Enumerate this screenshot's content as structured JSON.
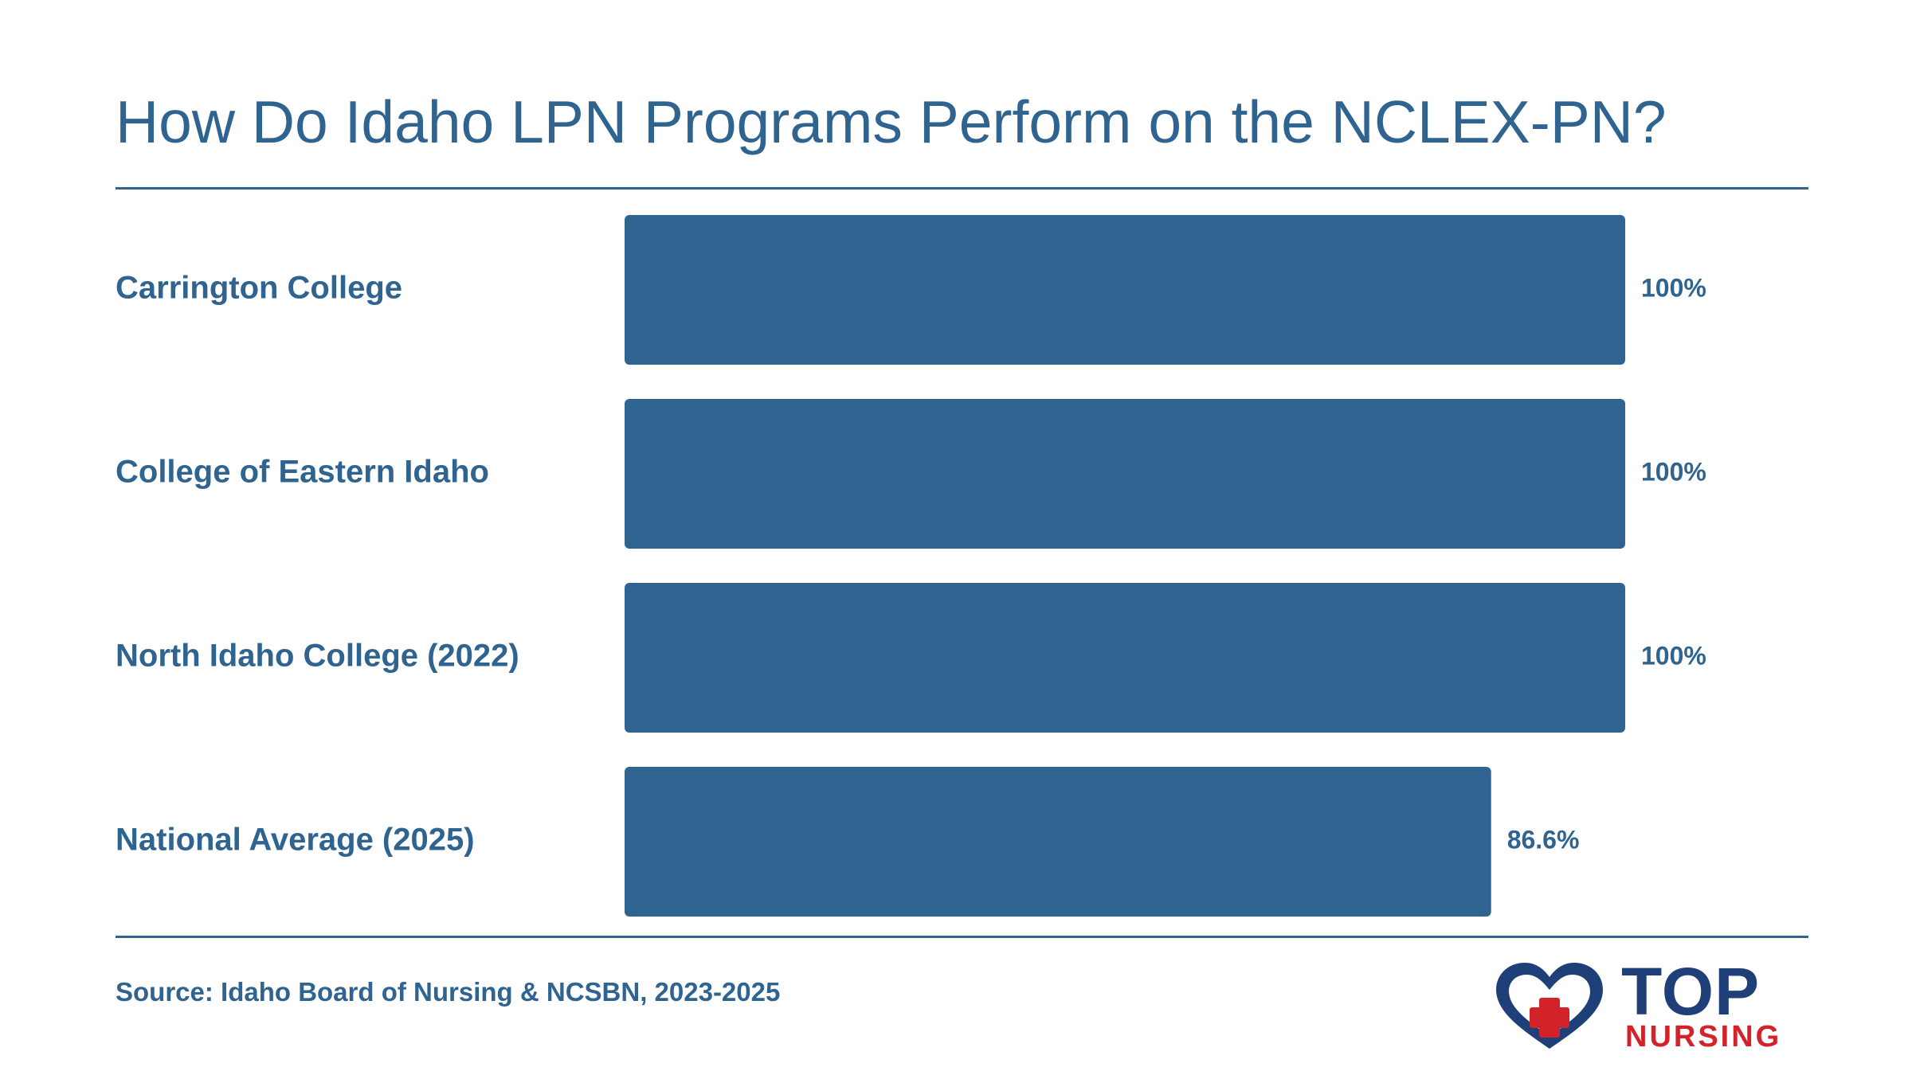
{
  "title": "How Do Idaho LPN Programs Perform on the NCLEX-PN?",
  "source": "Source: Idaho Board of Nursing & NCSBN, 2023-2025",
  "logo": {
    "top": "TOP",
    "bottom": "NURSING"
  },
  "colors": {
    "bar": "#2f6491",
    "text": "#2f6491",
    "logo_navy": "#1f3f78",
    "logo_red": "#d2232a"
  },
  "chart_data": {
    "type": "bar",
    "orientation": "horizontal",
    "title": "How Do Idaho LPN Programs Perform on the NCLEX-PN?",
    "xlabel": "",
    "ylabel": "",
    "xlim": [
      0,
      100
    ],
    "grid": false,
    "categories": [
      "Carrington College",
      "College of Eastern Idaho",
      "North Idaho College (2022)",
      "National Average (2025)"
    ],
    "values": [
      100,
      100,
      100,
      86.6
    ],
    "value_labels": [
      "100%",
      "100%",
      "100%",
      "86.6%"
    ]
  }
}
